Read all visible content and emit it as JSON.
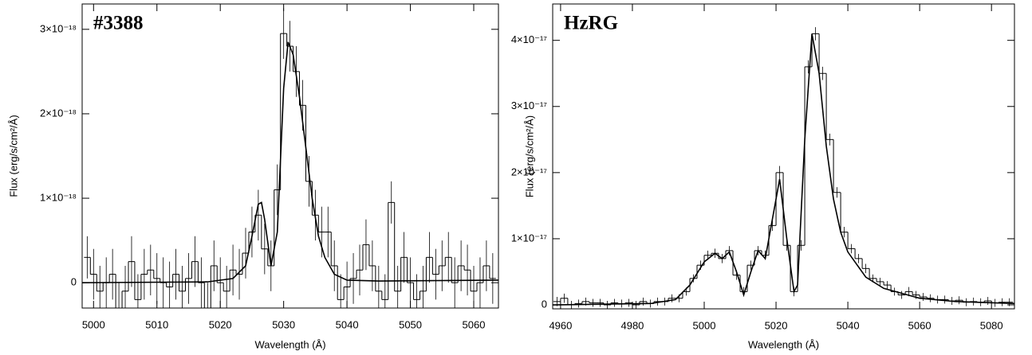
{
  "chart_data": [
    {
      "type": "step",
      "annotation": "#3388",
      "xlabel": "Wavelength (Å)",
      "ylabel": "Flux (erg/s/cm²/Å)",
      "color": "#000000",
      "xlim": [
        4998.2,
        5063.9
      ],
      "ylim": [
        -3e-19,
        3.3e-18
      ],
      "xticks": [
        5000,
        5010,
        5020,
        5030,
        5040,
        5050,
        5060
      ],
      "yticks": [
        0,
        {
          "value": 1e-18,
          "label": "1×10⁻¹⁸"
        },
        {
          "value": 2e-18,
          "label": "2×10⁻¹⁸"
        },
        {
          "value": 3e-18,
          "label": "3×10⁻¹⁸"
        }
      ],
      "x": [
        4999,
        5000,
        5001,
        5002,
        5003,
        5004,
        5005,
        5006,
        5007,
        5008,
        5009,
        5010,
        5011,
        5012,
        5013,
        5014,
        5015,
        5016,
        5017,
        5018,
        5019,
        5020,
        5021,
        5022,
        5023,
        5024,
        5025,
        5026,
        5027,
        5028,
        5029,
        5030,
        5031,
        5032,
        5033,
        5034,
        5035,
        5036,
        5037,
        5038,
        5039,
        5040,
        5041,
        5042,
        5043,
        5044,
        5045,
        5046,
        5047,
        5048,
        5049,
        5050,
        5051,
        5052,
        5053,
        5054,
        5055,
        5056,
        5057,
        5058,
        5059,
        5060,
        5061,
        5062,
        5063
      ],
      "values": [
        3e-19,
        1e-19,
        -1e-19,
        0,
        1e-19,
        -3e-19,
        -1e-19,
        2.5e-19,
        -2e-19,
        1e-19,
        1.5e-19,
        5e-20,
        0,
        -5e-20,
        1e-19,
        -1e-19,
        5e-20,
        2.5e-19,
        0,
        -3e-19,
        2e-19,
        0,
        -1e-19,
        1.5e-19,
        1e-19,
        3.5e-19,
        6e-19,
        8e-19,
        4e-19,
        2e-19,
        1.1e-18,
        2.95e-18,
        2.8e-18,
        2.5e-18,
        2.1e-18,
        1.2e-18,
        8e-19,
        6e-19,
        6e-19,
        2e-19,
        -2e-19,
        -5e-20,
        5e-20,
        1.5e-19,
        4.5e-19,
        2e-19,
        -1e-19,
        -2e-19,
        9.5e-19,
        -1e-19,
        3e-19,
        0,
        -2e-19,
        -1e-19,
        3e-19,
        1e-19,
        2e-19,
        3e-19,
        0,
        2e-19,
        1.5e-19,
        -1e-19,
        0,
        2e-19,
        5e-20
      ],
      "errors": [
        2.5e-19,
        3e-19,
        3e-19,
        3e-19,
        3e-19,
        3e-19,
        3e-19,
        3e-19,
        3e-19,
        3e-19,
        3e-19,
        3e-19,
        3e-19,
        3e-19,
        3e-19,
        3e-19,
        3e-19,
        3e-19,
        3e-19,
        3e-19,
        3e-19,
        3e-19,
        3e-19,
        3e-19,
        3e-19,
        3e-19,
        3e-19,
        3e-19,
        3e-19,
        3e-19,
        3e-19,
        3e-19,
        3e-19,
        3e-19,
        3e-19,
        3e-19,
        3e-19,
        3e-19,
        3e-19,
        3e-19,
        3e-19,
        3e-19,
        3e-19,
        3e-19,
        3e-19,
        3e-19,
        3e-19,
        3e-19,
        2.5e-19,
        3e-19,
        3e-19,
        3e-19,
        3e-19,
        3e-19,
        3e-19,
        3e-19,
        3e-19,
        3e-19,
        3e-19,
        3e-19,
        3e-19,
        3e-19,
        3e-19,
        3e-19,
        3e-19
      ],
      "fit_x": [
        4998.2,
        5018,
        5022,
        5024,
        5025,
        5026,
        5026.5,
        5027,
        5028,
        5029,
        5030,
        5030.7,
        5031.5,
        5032.5,
        5033.5,
        5034.5,
        5035.5,
        5036.5,
        5038,
        5040,
        5045,
        5063.9
      ],
      "fit_values": [
        0,
        1e-20,
        5e-20,
        2e-19,
        5.5e-19,
        9.3e-19,
        9.5e-19,
        7.5e-19,
        2e-19,
        6e-19,
        2.3e-18,
        2.85e-18,
        2.7e-18,
        2.2e-18,
        1.6e-18,
        1e-18,
        5.5e-19,
        3e-19,
        1e-19,
        3e-20,
        2e-20,
        3e-20
      ]
    },
    {
      "type": "step",
      "annotation": "HzRG",
      "xlabel": "Wavelength (Å)",
      "ylabel": "Flux (erg/s/cm²/Å)",
      "color": "#000000",
      "xlim": [
        4957.8,
        5086.4
      ],
      "ylim": [
        -6e-19,
        4.55e-17
      ],
      "xticks": [
        4960,
        4980,
        5000,
        5020,
        5040,
        5060,
        5080
      ],
      "yticks": [
        0,
        {
          "value": 1e-17,
          "label": "1×10⁻¹⁷"
        },
        {
          "value": 2e-17,
          "label": "2×10⁻¹⁷"
        },
        {
          "value": 3e-17,
          "label": "3×10⁻¹⁷"
        },
        {
          "value": 4e-17,
          "label": "4×10⁻¹⁷"
        }
      ],
      "x": [
        4959,
        4961,
        4963,
        4965,
        4967,
        4969,
        4971,
        4973,
        4975,
        4977,
        4979,
        4981,
        4983,
        4985,
        4987,
        4989,
        4991,
        4993,
        4995,
        4997,
        4999,
        5001,
        5003,
        5005,
        5007,
        5009,
        5011,
        5013,
        5015,
        5017,
        5019,
        5021,
        5023,
        5025,
        5027,
        5029,
        5031,
        5033,
        5035,
        5037,
        5039,
        5041,
        5043,
        5045,
        5047,
        5049,
        5051,
        5053,
        5055,
        5057,
        5059,
        5061,
        5063,
        5065,
        5067,
        5069,
        5071,
        5073,
        5075,
        5077,
        5079,
        5081,
        5083,
        5085
      ],
      "values": [
        5e-19,
        1e-18,
        0,
        2e-19,
        5e-19,
        3e-19,
        3e-19,
        0,
        3e-19,
        2e-19,
        3e-19,
        0,
        5e-19,
        2e-19,
        5e-19,
        5e-19,
        1e-18,
        1e-18,
        2e-18,
        4e-18,
        6e-18,
        7.5e-18,
        7.8e-18,
        7e-18,
        8.2e-18,
        4.5e-18,
        2e-18,
        6e-18,
        8.2e-18,
        7.5e-18,
        1.2e-17,
        2e-17,
        9e-18,
        2e-18,
        9e-18,
        3.6e-17,
        4.1e-17,
        3.5e-17,
        2.5e-17,
        1.7e-17,
        1.1e-17,
        8.5e-18,
        7e-18,
        5.5e-18,
        4e-18,
        3.5e-18,
        3e-18,
        2e-18,
        1.5e-18,
        2e-18,
        1.5e-18,
        1.2e-18,
        1e-18,
        8e-19,
        8e-19,
        6e-19,
        7e-19,
        4e-19,
        5e-19,
        4e-19,
        6e-19,
        3e-19,
        4e-19,
        4e-19
      ],
      "errors": [
        7e-19,
        7e-19,
        6e-19,
        6e-19,
        6e-19,
        6e-19,
        6e-19,
        6e-19,
        6e-19,
        6e-19,
        6e-19,
        6e-19,
        6e-19,
        6e-19,
        6e-19,
        6e-19,
        6e-19,
        6e-19,
        6e-19,
        6e-19,
        7e-19,
        7e-19,
        7e-19,
        7e-19,
        7e-19,
        7e-19,
        7e-19,
        7e-19,
        7e-19,
        7e-19,
        8e-19,
        1e-18,
        8e-19,
        7e-19,
        8e-19,
        1e-18,
        1e-18,
        1e-18,
        9e-19,
        8e-19,
        8e-19,
        7e-19,
        7e-19,
        7e-19,
        6e-19,
        6e-19,
        6e-19,
        6e-19,
        6e-19,
        7e-19,
        6e-19,
        6e-19,
        6e-19,
        6e-19,
        6e-19,
        6e-19,
        6e-19,
        6e-19,
        6e-19,
        6e-19,
        6e-19,
        6e-19,
        6e-19,
        6e-19
      ],
      "fit_x": [
        4957.8,
        4985,
        4992,
        4996,
        5000,
        5003,
        5005,
        5007,
        5009,
        5011,
        5013,
        5015,
        5017,
        5019,
        5021,
        5023,
        5025,
        5026,
        5028,
        5030,
        5032,
        5034,
        5036,
        5038,
        5040,
        5045,
        5050,
        5060,
        5070,
        5086.4
      ],
      "fit_values": [
        0,
        2e-19,
        8e-19,
        3e-18,
        6.5e-18,
        7.8e-18,
        7e-18,
        8e-18,
        5e-18,
        1.5e-18,
        5e-18,
        8.2e-18,
        7e-18,
        1.3e-17,
        1.9e-17,
        1e-17,
        2e-18,
        3e-18,
        2.5e-17,
        4.1e-17,
        3.5e-17,
        2.4e-17,
        1.6e-17,
        1.1e-17,
        8e-18,
        4.2e-18,
        2.5e-18,
        1e-18,
        5e-19,
        2e-19
      ]
    }
  ]
}
